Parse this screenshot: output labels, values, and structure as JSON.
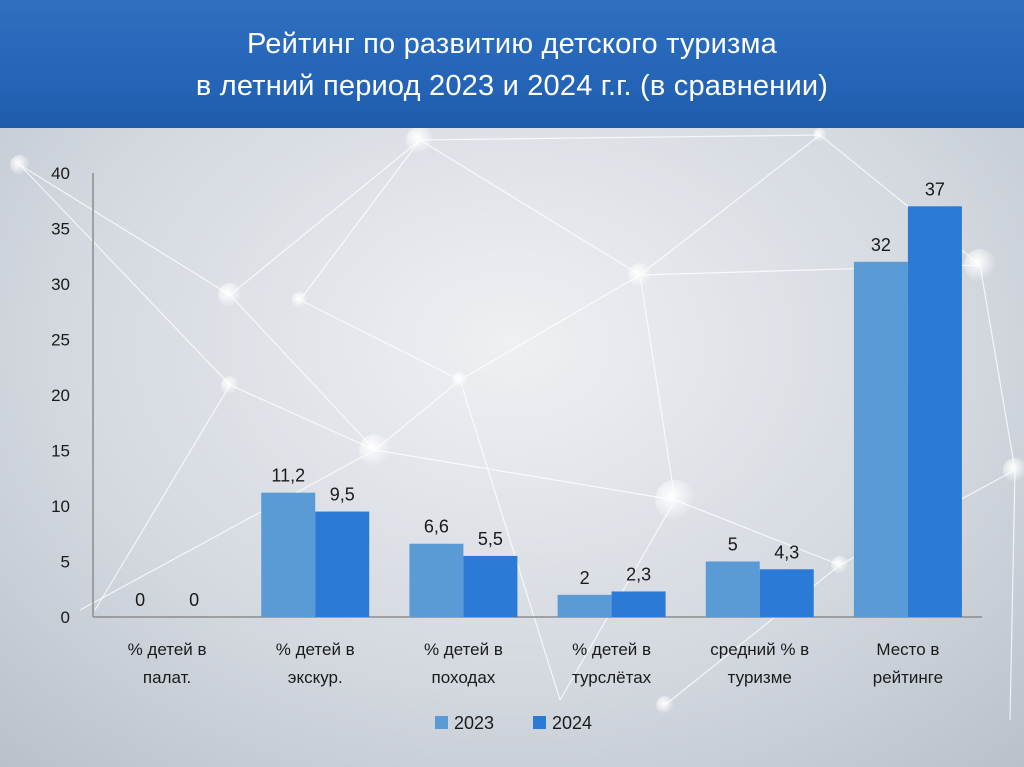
{
  "header": {
    "title_line_1": "Рейтинг по развитию детского туризма",
    "title_line_2": "в летний период 2023 и 2024 г.г. (в сравнении)"
  },
  "colors": {
    "header_bg": "#2565b8",
    "series_2023": "#5b9bd5",
    "series_2024": "#2a7ad6",
    "axis": "#8c8c8c"
  },
  "chart_data": {
    "type": "bar",
    "title": "Рейтинг по развитию детского туризма в летний период 2023 и 2024 г.г. (в сравнении)",
    "categories": [
      [
        "% детей в",
        "палат."
      ],
      [
        "% детей в",
        "экскур."
      ],
      [
        "% детей в",
        "походах"
      ],
      [
        "% детей в",
        "турслётах"
      ],
      [
        "средний % в",
        "туризме"
      ],
      [
        "Место в",
        "рейтинге"
      ]
    ],
    "series": [
      {
        "name": "2023",
        "values": [
          0,
          11.2,
          6.6,
          2,
          5,
          32
        ],
        "labels": [
          "0",
          "11,2",
          "6,6",
          "2",
          "5",
          "32"
        ]
      },
      {
        "name": "2024",
        "values": [
          0,
          9.5,
          5.5,
          2.3,
          4.3,
          37
        ],
        "labels": [
          "0",
          "9,5",
          "5,5",
          "2,3",
          "4,3",
          "37"
        ]
      }
    ],
    "ylim": [
      0,
      40
    ],
    "yticks": [
      0,
      5,
      10,
      15,
      20,
      25,
      30,
      35,
      40
    ],
    "grid": false,
    "legend_position": "bottom"
  }
}
